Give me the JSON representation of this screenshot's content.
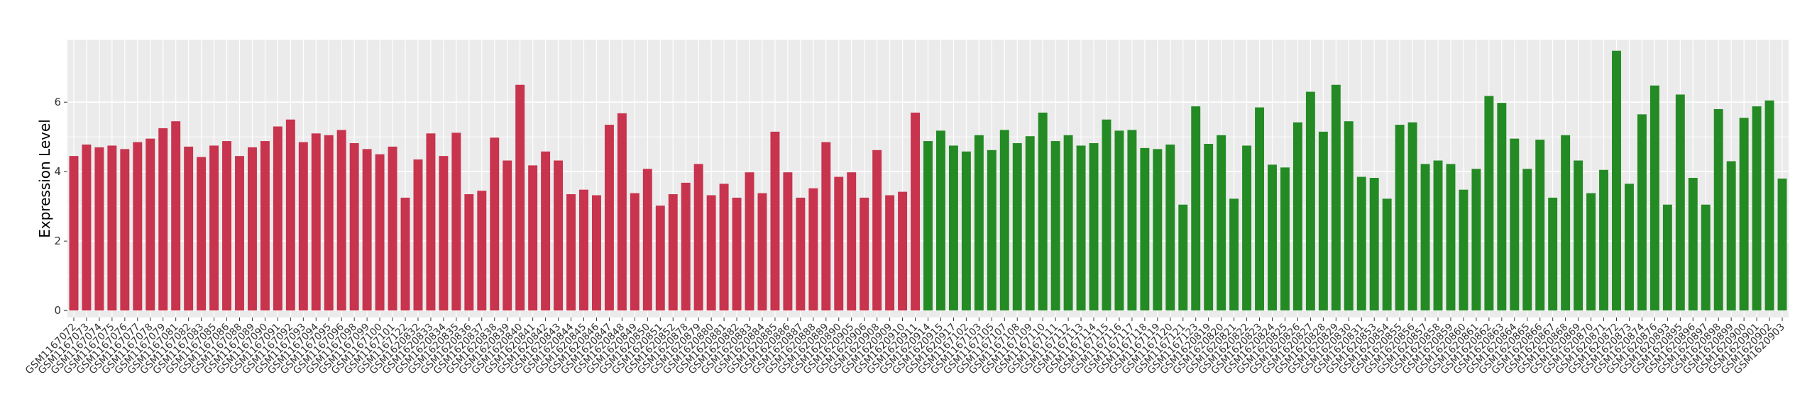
{
  "chart_data": {
    "type": "bar",
    "title": "",
    "xlabel": "",
    "ylabel": "Expression Level",
    "ylim": [
      -0.2,
      7.8
    ],
    "yticks": [
      0,
      2,
      4,
      6
    ],
    "grid": true,
    "legend": "none",
    "colors": {
      "group_a": "#c8334d",
      "group_b": "#248b24",
      "panel_bg": "#ebebeb",
      "grid": "#ffffff"
    },
    "bars": [
      {
        "label": "GSM1167072",
        "value": 4.45,
        "group": "a"
      },
      {
        "label": "GSM1167073",
        "value": 4.78,
        "group": "a"
      },
      {
        "label": "GSM1167074",
        "value": 4.7,
        "group": "a"
      },
      {
        "label": "GSM1167075",
        "value": 4.75,
        "group": "a"
      },
      {
        "label": "GSM1167076",
        "value": 4.65,
        "group": "a"
      },
      {
        "label": "GSM1167077",
        "value": 4.85,
        "group": "a"
      },
      {
        "label": "GSM1167078",
        "value": 4.95,
        "group": "a"
      },
      {
        "label": "GSM1167079",
        "value": 5.25,
        "group": "a"
      },
      {
        "label": "GSM1167081",
        "value": 5.45,
        "group": "a"
      },
      {
        "label": "GSM1167082",
        "value": 4.72,
        "group": "a"
      },
      {
        "label": "GSM1167083",
        "value": 4.42,
        "group": "a"
      },
      {
        "label": "GSM1167085",
        "value": 4.75,
        "group": "a"
      },
      {
        "label": "GSM1167086",
        "value": 4.88,
        "group": "a"
      },
      {
        "label": "GSM1167088",
        "value": 4.45,
        "group": "a"
      },
      {
        "label": "GSM1167089",
        "value": 4.7,
        "group": "a"
      },
      {
        "label": "GSM1167090",
        "value": 4.88,
        "group": "a"
      },
      {
        "label": "GSM1167091",
        "value": 5.3,
        "group": "a"
      },
      {
        "label": "GSM1167092",
        "value": 5.5,
        "group": "a"
      },
      {
        "label": "GSM1167093",
        "value": 4.85,
        "group": "a"
      },
      {
        "label": "GSM1167094",
        "value": 5.1,
        "group": "a"
      },
      {
        "label": "GSM1167095",
        "value": 5.05,
        "group": "a"
      },
      {
        "label": "GSM1167096",
        "value": 5.2,
        "group": "a"
      },
      {
        "label": "GSM1167098",
        "value": 4.82,
        "group": "a"
      },
      {
        "label": "GSM1167099",
        "value": 4.65,
        "group": "a"
      },
      {
        "label": "GSM1167100",
        "value": 4.5,
        "group": "a"
      },
      {
        "label": "GSM1167101",
        "value": 4.72,
        "group": "a"
      },
      {
        "label": "GSM1167122",
        "value": 3.25,
        "group": "a"
      },
      {
        "label": "GSM1620832",
        "value": 4.35,
        "group": "a"
      },
      {
        "label": "GSM1620833",
        "value": 5.1,
        "group": "a"
      },
      {
        "label": "GSM1620834",
        "value": 4.45,
        "group": "a"
      },
      {
        "label": "GSM1620835",
        "value": 5.12,
        "group": "a"
      },
      {
        "label": "GSM1620836",
        "value": 3.35,
        "group": "a"
      },
      {
        "label": "GSM1620837",
        "value": 3.45,
        "group": "a"
      },
      {
        "label": "GSM1620838",
        "value": 4.98,
        "group": "a"
      },
      {
        "label": "GSM1620839",
        "value": 4.32,
        "group": "a"
      },
      {
        "label": "GSM1620840",
        "value": 6.5,
        "group": "a"
      },
      {
        "label": "GSM1620841",
        "value": 4.18,
        "group": "a"
      },
      {
        "label": "GSM1620842",
        "value": 4.58,
        "group": "a"
      },
      {
        "label": "GSM1620843",
        "value": 4.32,
        "group": "a"
      },
      {
        "label": "GSM1620844",
        "value": 3.35,
        "group": "a"
      },
      {
        "label": "GSM1620845",
        "value": 3.48,
        "group": "a"
      },
      {
        "label": "GSM1620846",
        "value": 3.32,
        "group": "a"
      },
      {
        "label": "GSM1620847",
        "value": 5.35,
        "group": "a"
      },
      {
        "label": "GSM1620848",
        "value": 5.68,
        "group": "a"
      },
      {
        "label": "GSM1620849",
        "value": 3.38,
        "group": "a"
      },
      {
        "label": "GSM1620850",
        "value": 4.08,
        "group": "a"
      },
      {
        "label": "GSM1620851",
        "value": 3.02,
        "group": "a"
      },
      {
        "label": "GSM1620852",
        "value": 3.35,
        "group": "a"
      },
      {
        "label": "GSM1620878",
        "value": 3.68,
        "group": "a"
      },
      {
        "label": "GSM1620879",
        "value": 4.22,
        "group": "a"
      },
      {
        "label": "GSM1620880",
        "value": 3.32,
        "group": "a"
      },
      {
        "label": "GSM1620881",
        "value": 3.65,
        "group": "a"
      },
      {
        "label": "GSM1620882",
        "value": 3.25,
        "group": "a"
      },
      {
        "label": "GSM1620883",
        "value": 3.98,
        "group": "a"
      },
      {
        "label": "GSM1620884",
        "value": 3.38,
        "group": "a"
      },
      {
        "label": "GSM1620885",
        "value": 5.15,
        "group": "a"
      },
      {
        "label": "GSM1620886",
        "value": 3.98,
        "group": "a"
      },
      {
        "label": "GSM1620887",
        "value": 3.25,
        "group": "a"
      },
      {
        "label": "GSM1620888",
        "value": 3.52,
        "group": "a"
      },
      {
        "label": "GSM1620889",
        "value": 4.85,
        "group": "a"
      },
      {
        "label": "GSM1620890",
        "value": 3.85,
        "group": "a"
      },
      {
        "label": "GSM1620905",
        "value": 3.98,
        "group": "a"
      },
      {
        "label": "GSM1620906",
        "value": 3.25,
        "group": "a"
      },
      {
        "label": "GSM1620908",
        "value": 4.62,
        "group": "a"
      },
      {
        "label": "GSM1620909",
        "value": 3.32,
        "group": "a"
      },
      {
        "label": "GSM1620910",
        "value": 3.42,
        "group": "a"
      },
      {
        "label": "GSM1620911",
        "value": 5.7,
        "group": "a"
      },
      {
        "label": "GSM1620914",
        "value": 4.88,
        "group": "b"
      },
      {
        "label": "GSM1620915",
        "value": 5.18,
        "group": "b"
      },
      {
        "label": "GSM1620917",
        "value": 4.75,
        "group": "b"
      },
      {
        "label": "GSM1167102",
        "value": 4.58,
        "group": "b"
      },
      {
        "label": "GSM1167103",
        "value": 5.05,
        "group": "b"
      },
      {
        "label": "GSM1167105",
        "value": 4.62,
        "group": "b"
      },
      {
        "label": "GSM1167107",
        "value": 5.2,
        "group": "b"
      },
      {
        "label": "GSM1167108",
        "value": 4.82,
        "group": "b"
      },
      {
        "label": "GSM1167109",
        "value": 5.02,
        "group": "b"
      },
      {
        "label": "GSM1167110",
        "value": 5.7,
        "group": "b"
      },
      {
        "label": "GSM1167111",
        "value": 4.88,
        "group": "b"
      },
      {
        "label": "GSM1167112",
        "value": 5.05,
        "group": "b"
      },
      {
        "label": "GSM1167113",
        "value": 4.75,
        "group": "b"
      },
      {
        "label": "GSM1167114",
        "value": 4.82,
        "group": "b"
      },
      {
        "label": "GSM1167115",
        "value": 5.5,
        "group": "b"
      },
      {
        "label": "GSM1167116",
        "value": 5.18,
        "group": "b"
      },
      {
        "label": "GSM1167117",
        "value": 5.2,
        "group": "b"
      },
      {
        "label": "GSM1167118",
        "value": 4.68,
        "group": "b"
      },
      {
        "label": "GSM1167119",
        "value": 4.65,
        "group": "b"
      },
      {
        "label": "GSM1167120",
        "value": 4.78,
        "group": "b"
      },
      {
        "label": "GSM1167121",
        "value": 3.05,
        "group": "b"
      },
      {
        "label": "GSM1167123",
        "value": 5.88,
        "group": "b"
      },
      {
        "label": "GSM1620819",
        "value": 4.8,
        "group": "b"
      },
      {
        "label": "GSM1620820",
        "value": 5.05,
        "group": "b"
      },
      {
        "label": "GSM1620821",
        "value": 3.22,
        "group": "b"
      },
      {
        "label": "GSM1620822",
        "value": 4.75,
        "group": "b"
      },
      {
        "label": "GSM1620823",
        "value": 5.85,
        "group": "b"
      },
      {
        "label": "GSM1620824",
        "value": 4.2,
        "group": "b"
      },
      {
        "label": "GSM1620825",
        "value": 4.12,
        "group": "b"
      },
      {
        "label": "GSM1620826",
        "value": 5.42,
        "group": "b"
      },
      {
        "label": "GSM1620827",
        "value": 6.3,
        "group": "b"
      },
      {
        "label": "GSM1620828",
        "value": 5.15,
        "group": "b"
      },
      {
        "label": "GSM1620829",
        "value": 6.5,
        "group": "b"
      },
      {
        "label": "GSM1620830",
        "value": 5.45,
        "group": "b"
      },
      {
        "label": "GSM1620831",
        "value": 3.85,
        "group": "b"
      },
      {
        "label": "GSM1620853",
        "value": 3.82,
        "group": "b"
      },
      {
        "label": "GSM1620854",
        "value": 3.22,
        "group": "b"
      },
      {
        "label": "GSM1620855",
        "value": 5.35,
        "group": "b"
      },
      {
        "label": "GSM1620856",
        "value": 5.42,
        "group": "b"
      },
      {
        "label": "GSM1620857",
        "value": 4.22,
        "group": "b"
      },
      {
        "label": "GSM1620858",
        "value": 4.32,
        "group": "b"
      },
      {
        "label": "GSM1620859",
        "value": 4.22,
        "group": "b"
      },
      {
        "label": "GSM1620860",
        "value": 3.48,
        "group": "b"
      },
      {
        "label": "GSM1620861",
        "value": 4.08,
        "group": "b"
      },
      {
        "label": "GSM1620862",
        "value": 6.18,
        "group": "b"
      },
      {
        "label": "GSM1620863",
        "value": 5.98,
        "group": "b"
      },
      {
        "label": "GSM1620864",
        "value": 4.95,
        "group": "b"
      },
      {
        "label": "GSM1620865",
        "value": 4.08,
        "group": "b"
      },
      {
        "label": "GSM1620866",
        "value": 4.92,
        "group": "b"
      },
      {
        "label": "GSM1620867",
        "value": 3.25,
        "group": "b"
      },
      {
        "label": "GSM1620868",
        "value": 5.05,
        "group": "b"
      },
      {
        "label": "GSM1620869",
        "value": 4.32,
        "group": "b"
      },
      {
        "label": "GSM1620870",
        "value": 3.38,
        "group": "b"
      },
      {
        "label": "GSM1620871",
        "value": 4.05,
        "group": "b"
      },
      {
        "label": "GSM1620872",
        "value": 7.48,
        "group": "b"
      },
      {
        "label": "GSM1620873",
        "value": 3.65,
        "group": "b"
      },
      {
        "label": "GSM1620874",
        "value": 5.65,
        "group": "b"
      },
      {
        "label": "GSM1620876",
        "value": 6.48,
        "group": "b"
      },
      {
        "label": "GSM1620893",
        "value": 3.05,
        "group": "b"
      },
      {
        "label": "GSM1620895",
        "value": 6.22,
        "group": "b"
      },
      {
        "label": "GSM1620896",
        "value": 3.82,
        "group": "b"
      },
      {
        "label": "GSM1620897",
        "value": 3.05,
        "group": "b"
      },
      {
        "label": "GSM1620898",
        "value": 5.8,
        "group": "b"
      },
      {
        "label": "GSM1620899",
        "value": 4.3,
        "group": "b"
      },
      {
        "label": "GSM1620900",
        "value": 5.55,
        "group": "b"
      },
      {
        "label": "GSM1620901",
        "value": 5.88,
        "group": "b"
      },
      {
        "label": "GSM1620902",
        "value": 6.05,
        "group": "b"
      },
      {
        "label": "GSM1620903",
        "value": 3.8,
        "group": "b"
      }
    ]
  }
}
